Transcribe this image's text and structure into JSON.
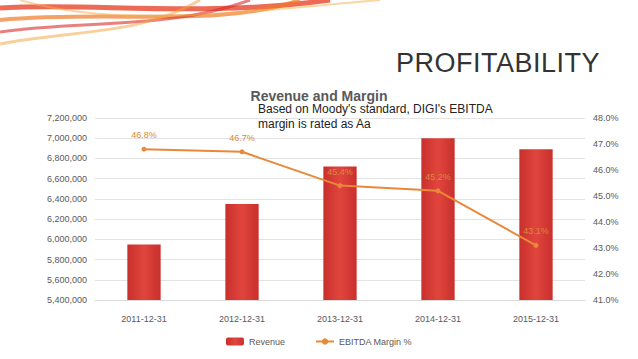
{
  "heading": "PROFITABILITY",
  "chart_data": {
    "type": "bar",
    "title": "Revenue and Margin",
    "annotations": [
      "Based on Moody's standard, DIGI's EBITDA margin is rated as Aa"
    ],
    "categories": [
      "2011-12-31",
      "2012-12-31",
      "2013-12-31",
      "2014-12-31",
      "2015-12-31"
    ],
    "series": [
      {
        "name": "Revenue",
        "type": "bar",
        "color": "#c9302c",
        "values": [
          5950000,
          6350000,
          6720000,
          7000000,
          6890000
        ]
      },
      {
        "name": "EBITDA Margin %",
        "type": "line",
        "axis": "y2",
        "color": "#e8893a",
        "marker": "circle",
        "line_style": "solid",
        "data_labels": true,
        "values": [
          46.8,
          46.7,
          45.4,
          45.2,
          43.1
        ],
        "value_labels": [
          "46.8%",
          "46.7%",
          "45.4%",
          "45.2%",
          "43.1%"
        ]
      }
    ],
    "ylim": [
      5400000,
      7200000
    ],
    "yticks": [
      {
        "value": 5400000,
        "label": "5,400,000"
      },
      {
        "value": 5600000,
        "label": "5,600,000"
      },
      {
        "value": 5800000,
        "label": "5,800,000"
      },
      {
        "value": 6000000,
        "label": "6,000,000"
      },
      {
        "value": 6200000,
        "label": "6,200,000"
      },
      {
        "value": 6400000,
        "label": "6,400,000"
      },
      {
        "value": 6600000,
        "label": "6,600,000"
      },
      {
        "value": 6800000,
        "label": "6,800,000"
      },
      {
        "value": 7000000,
        "label": "7,000,000"
      },
      {
        "value": 7200000,
        "label": "7,200,000"
      }
    ],
    "y2lim": [
      41,
      48
    ],
    "y2ticks": [
      {
        "value": 41,
        "label": "41.0%"
      },
      {
        "value": 42,
        "label": "42.0%"
      },
      {
        "value": 43,
        "label": "43.0%"
      },
      {
        "value": 44,
        "label": "44.0%"
      },
      {
        "value": 45,
        "label": "45.0%"
      },
      {
        "value": 46,
        "label": "46.0%"
      },
      {
        "value": 47,
        "label": "47.0%"
      },
      {
        "value": 48,
        "label": "48.0%"
      }
    ],
    "grid": true,
    "legend": "bottom"
  }
}
